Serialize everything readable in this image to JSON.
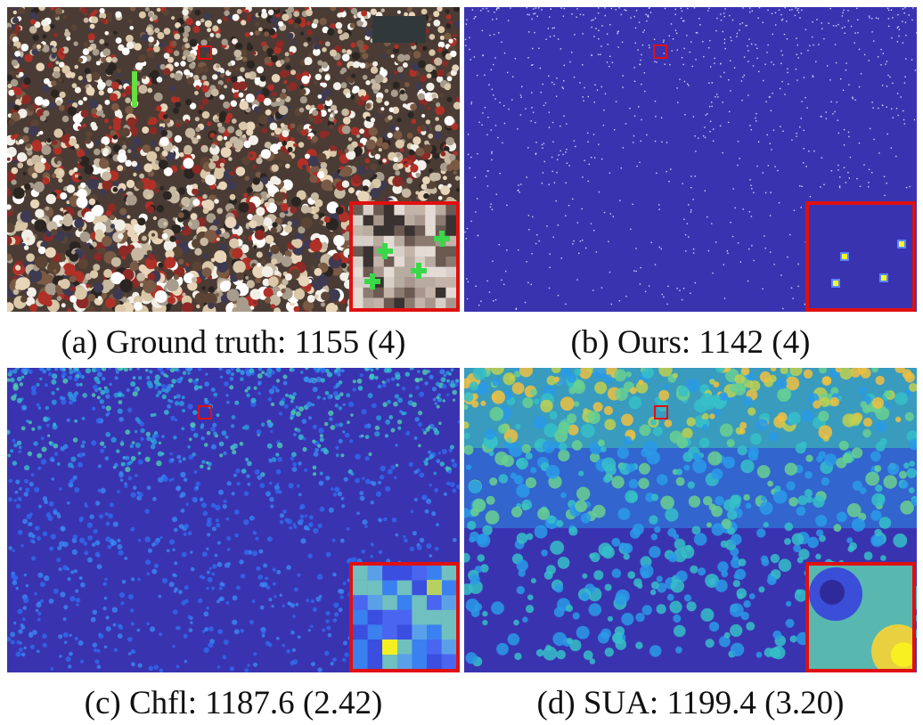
{
  "panels": [
    {
      "id": "a",
      "caption": "(a) Ground truth: 1155 (4)",
      "kind": "photo"
    },
    {
      "id": "b",
      "caption": "(b) Ours: 1142 (4)",
      "kind": "points"
    },
    {
      "id": "c",
      "caption": "(c) Chfl: 1187.6 (2.42)",
      "kind": "density-sharp"
    },
    {
      "id": "d",
      "caption": "(d) SUA: 1199.4 (3.20)",
      "kind": "density-blur"
    }
  ],
  "colors": {
    "background": "#3a33b0",
    "roi": "#e01010",
    "point": "#f4ff20",
    "marker": "#38d84a"
  }
}
